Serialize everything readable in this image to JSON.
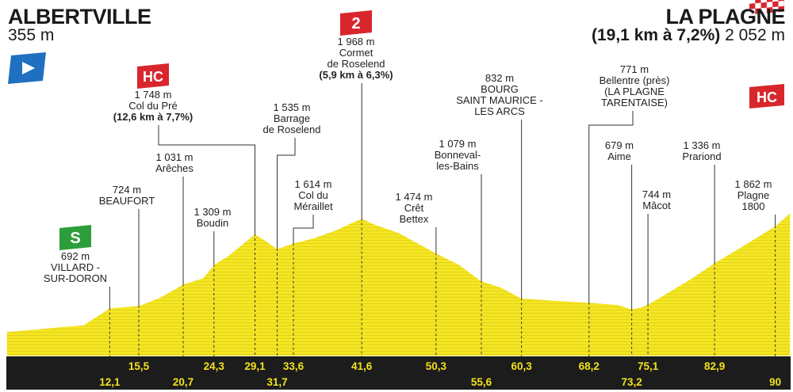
{
  "start": {
    "name": "ALBERTVILLE",
    "altitude": "355 m"
  },
  "finish": {
    "name": "LA PLAGNE",
    "climb": "(19,1 km à 7,2%)",
    "altitude": "2 052 m"
  },
  "colors": {
    "profile_fill": "#f5e623",
    "stripe": "#e3d21a",
    "axis_bar": "#1c1c1c",
    "km_text": "#f2e21c",
    "hc_badge": "#d8262c",
    "sprint_badge": "#2e9e3a",
    "start_flag": "#1f70c1"
  },
  "icons": {
    "start": "start-flag-icon",
    "finish": "checkered-flag-icon",
    "sprint": "green-sprint-icon"
  },
  "chart_data": {
    "type": "area",
    "xlim": [
      0,
      91.8
    ],
    "ylim": [
      0,
      2052
    ],
    "grid": false,
    "x": [
      0,
      3,
      6,
      9,
      12.1,
      15.5,
      18,
      20.7,
      23,
      24.3,
      26,
      29.1,
      30.3,
      31.7,
      32.5,
      33.6,
      36,
      38.5,
      40.5,
      41.6,
      43,
      46,
      50.3,
      53,
      55.6,
      58,
      60.3,
      64,
      68.2,
      71.5,
      73.2,
      74.2,
      75.1,
      77,
      80,
      82.9,
      86,
      90,
      91.8
    ],
    "y": [
      355,
      385,
      420,
      450,
      692,
      724,
      845,
      1031,
      1120,
      1309,
      1440,
      1748,
      1655,
      1535,
      1570,
      1614,
      1690,
      1800,
      1910,
      1968,
      1890,
      1760,
      1474,
      1310,
      1079,
      980,
      832,
      800,
      771,
      740,
      679,
      700,
      744,
      880,
      1100,
      1336,
      1560,
      1862,
      2052
    ],
    "points": [
      {
        "km": 0,
        "alt": 355,
        "name": "ALBERTVILLE"
      },
      {
        "km": 12.1,
        "alt": 692,
        "name": "VILLARD - SUR-DORON",
        "lines": [
          "692 m",
          "VILLARD -",
          "SUR-DORON"
        ],
        "badge": "sprint",
        "badge_text": "S"
      },
      {
        "km": 15.5,
        "alt": 724,
        "name": "BEAUFORT",
        "lines": [
          "724 m",
          "BEAUFORT"
        ]
      },
      {
        "km": 20.7,
        "alt": 1031,
        "name": "Arêches",
        "lines": [
          "1 031 m",
          "Arêches"
        ]
      },
      {
        "km": 24.3,
        "alt": 1309,
        "name": "Boudin",
        "lines": [
          "1 309 m",
          "Boudin"
        ]
      },
      {
        "km": 29.1,
        "alt": 1748,
        "name": "Col du Pré",
        "lines": [
          "1 748 m",
          "Col du Pré"
        ],
        "climb": "(12,6 km à 7,7%)",
        "badge": "hc",
        "badge_text": "HC"
      },
      {
        "km": 31.7,
        "alt": 1535,
        "name": "Barrage de Roselend",
        "lines": [
          "1 535 m",
          "Barrage",
          "de Roselend"
        ]
      },
      {
        "km": 33.6,
        "alt": 1614,
        "name": "Col du Méraillet",
        "lines": [
          "1 614 m",
          "Col du",
          "Méraillet"
        ]
      },
      {
        "km": 41.6,
        "alt": 1968,
        "name": "Cormet de Roselend",
        "lines": [
          "1 968 m",
          "Cormet",
          "de Roselend"
        ],
        "climb": "(5,9 km à 6,3%)",
        "badge": "cat2",
        "badge_text": "2"
      },
      {
        "km": 50.3,
        "alt": 1474,
        "name": "Crêt Bettex",
        "lines": [
          "1 474 m",
          "Crêt",
          "Bettex"
        ]
      },
      {
        "km": 55.6,
        "alt": 1079,
        "name": "Bonneval-les-Bains",
        "lines": [
          "1 079 m",
          "Bonneval-",
          "les-Bains"
        ]
      },
      {
        "km": 60.3,
        "alt": 832,
        "name": "BOURG SAINT MAURICE - LES ARCS",
        "lines": [
          "832 m",
          "BOURG",
          "SAINT MAURICE -",
          "LES ARCS"
        ]
      },
      {
        "km": 68.2,
        "alt": 771,
        "name": "Bellentre (près) (LA PLAGNE TARENTAISE)",
        "lines": [
          "771 m",
          "Bellentre (près)",
          "(LA PLAGNE",
          "TARENTAISE)"
        ]
      },
      {
        "km": 73.2,
        "alt": 679,
        "name": "Aime",
        "lines": [
          "679 m",
          "Aime"
        ]
      },
      {
        "km": 75.1,
        "alt": 744,
        "name": "Mâcot",
        "lines": [
          "744 m",
          "Mâcot"
        ]
      },
      {
        "km": 82.9,
        "alt": 1336,
        "name": "Prariond",
        "lines": [
          "1 336 m",
          "Prariond"
        ]
      },
      {
        "km": 90,
        "alt": 1862,
        "name": "Plagne 1800",
        "lines": [
          "1 862 m",
          "Plagne",
          "1800"
        ]
      }
    ],
    "km_labels_upper": [
      "15,5",
      "24,3",
      "29,1",
      "33,6",
      "41,6",
      "50,3",
      "60,3",
      "68,2",
      "75,1",
      "82,9"
    ],
    "km_labels_lower": [
      "12,1",
      "20,7",
      "31,7",
      "55,6",
      "73,2",
      "90"
    ],
    "km_upper_values": [
      15.5,
      24.3,
      29.1,
      33.6,
      41.6,
      50.3,
      60.3,
      68.2,
      75.1,
      82.9
    ],
    "km_lower_values": [
      12.1,
      20.7,
      31.7,
      55.6,
      73.2,
      90
    ]
  }
}
